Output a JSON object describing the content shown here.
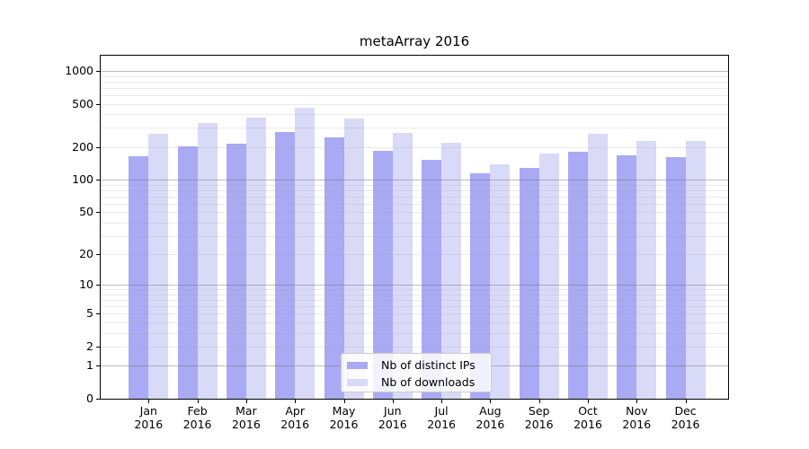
{
  "chart_data": {
    "type": "bar",
    "title": "metaArray 2016",
    "x_months": [
      "Jan",
      "Feb",
      "Mar",
      "Apr",
      "May",
      "Jun",
      "Jul",
      "Aug",
      "Sep",
      "Oct",
      "Nov",
      "Dec"
    ],
    "x_year": "2016",
    "series": [
      {
        "name": "Nb of distinct IPs",
        "color": "#a9a9f4",
        "values": [
          165,
          205,
          215,
          275,
          245,
          184,
          154,
          115,
          128,
          180,
          168,
          163
        ]
      },
      {
        "name": "Nb of downloads",
        "color": "#d9d9f8",
        "values": [
          265,
          330,
          370,
          460,
          365,
          270,
          218,
          140,
          173,
          265,
          228,
          228
        ]
      }
    ],
    "yscale": "symlog",
    "yticks": [
      0,
      1,
      2,
      5,
      10,
      20,
      50,
      100,
      200,
      500,
      1000
    ],
    "ylim": [
      0,
      1380
    ],
    "grid": true,
    "major_gridlines": [
      1,
      10,
      100,
      1000
    ],
    "minor_gridlines": [
      2,
      3,
      4,
      5,
      6,
      7,
      8,
      9,
      20,
      30,
      40,
      50,
      60,
      70,
      80,
      90,
      200,
      300,
      400,
      500,
      600,
      700,
      800,
      900
    ],
    "legend_position": "lower center"
  },
  "colors": {
    "axis_line": "#000000",
    "major_grid": "rgba(110,110,110,0.45)",
    "minor_grid": "rgba(160,160,165,0.22)",
    "legend_border": "#cccccc",
    "text": "#000000",
    "background": "#ffffff"
  }
}
